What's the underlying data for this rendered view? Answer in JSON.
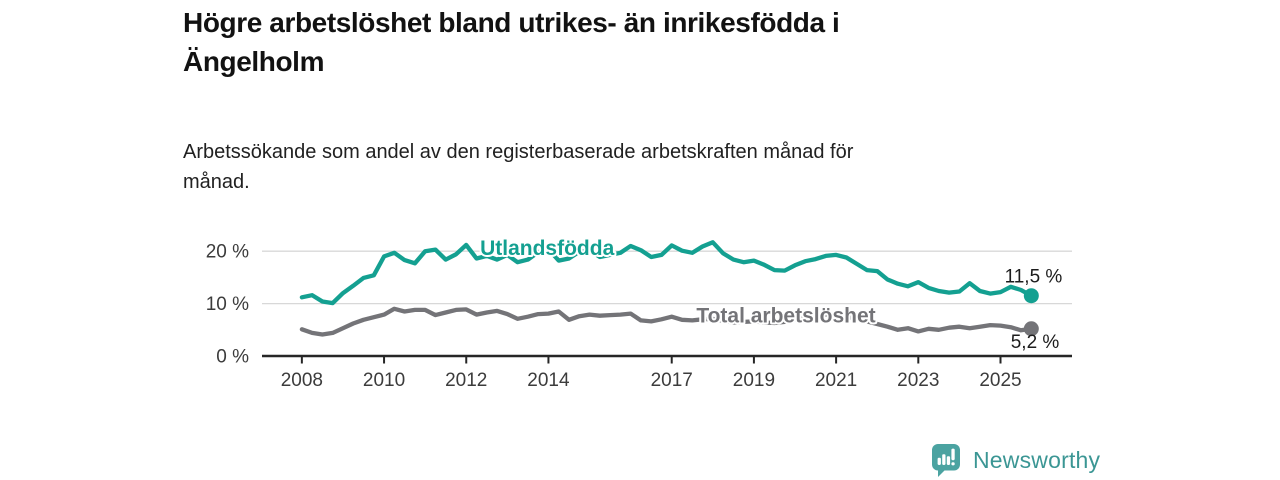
{
  "header": {
    "title_lines": [
      "Högre arbetslöshet bland utrikes- än inrikesfödda i",
      "Ängelholm"
    ],
    "subtitle_lines": [
      "Arbetssökande som andel av den registerbaserade arbetskraften månad för",
      "månad."
    ]
  },
  "chart_data": {
    "type": "line",
    "title": "Högre arbetslöshet bland utrikes- än inrikesfödda i Ängelholm",
    "subtitle": "Arbetssökande som andel av den registerbaserade arbetskraften månad för månad.",
    "y_unit": "%",
    "grid": "horizontal",
    "legend_position": "inline-labels",
    "x_domain": [
      2007.03,
      2026.74
    ],
    "y_domain": [
      0,
      25
    ],
    "y_ticks": [
      {
        "value": 0,
        "label": "0 %"
      },
      {
        "value": 10,
        "label": "10 %"
      },
      {
        "value": 20,
        "label": "20 %"
      }
    ],
    "x_ticks": [
      {
        "value": 2008,
        "label": "2008"
      },
      {
        "value": 2010,
        "label": "2010"
      },
      {
        "value": 2012,
        "label": "2012"
      },
      {
        "value": 2014,
        "label": "2014"
      },
      {
        "value": 2017,
        "label": "2017"
      },
      {
        "value": 2019,
        "label": "2019"
      },
      {
        "value": 2021,
        "label": "2021"
      },
      {
        "value": 2023,
        "label": "2023"
      },
      {
        "value": 2025,
        "label": "2025"
      }
    ],
    "series": [
      {
        "name": "Total arbetslöshet",
        "color": "#747478",
        "x_start": 2008.0,
        "x_step": 0.25,
        "values": [
          5.1,
          4.4,
          4.1,
          4.4,
          5.3,
          6.2,
          6.9,
          7.4,
          7.9,
          9.0,
          8.5,
          8.8,
          8.8,
          7.8,
          8.3,
          8.8,
          8.9,
          7.9,
          8.3,
          8.6,
          8.0,
          7.1,
          7.5,
          8.0,
          8.1,
          8.5,
          6.9,
          7.6,
          7.9,
          7.7,
          7.8,
          7.9,
          8.1,
          6.8,
          6.6,
          7.0,
          7.5,
          6.9,
          6.8,
          7.0,
          7.1,
          6.7,
          6.4,
          6.5,
          6.6,
          6.4,
          6.3,
          6.5,
          6.9,
          7.8,
          8.0,
          7.9,
          7.8,
          7.5,
          7.1,
          6.6,
          6.1,
          5.6,
          5.0,
          5.3,
          4.7,
          5.2,
          5.0,
          5.4,
          5.6,
          5.3,
          5.6,
          5.9,
          5.8,
          5.5,
          4.9,
          5.2
        ],
        "end_value": 5.2,
        "end_label": "5,2 %",
        "inline_label": {
          "text": "Total arbetslöshet",
          "x": 2019.78,
          "y": 6.4
        }
      },
      {
        "name": "Utlandsfödda",
        "color": "#14a091",
        "x_start": 2008.0,
        "x_step": 0.25,
        "values": [
          11.2,
          11.6,
          10.4,
          10.1,
          12.0,
          13.4,
          14.9,
          15.4,
          19.0,
          19.7,
          18.3,
          17.7,
          20.0,
          20.3,
          18.4,
          19.4,
          21.2,
          18.6,
          19.1,
          18.4,
          19.3,
          17.9,
          18.4,
          19.8,
          20.4,
          18.2,
          18.6,
          19.9,
          20.2,
          18.9,
          19.3,
          19.7,
          21.0,
          20.2,
          18.9,
          19.3,
          21.1,
          20.1,
          19.7,
          20.9,
          21.7,
          19.6,
          18.4,
          17.9,
          18.2,
          17.4,
          16.4,
          16.3,
          17.3,
          18.1,
          18.5,
          19.1,
          19.3,
          18.8,
          17.6,
          16.4,
          16.2,
          14.6,
          13.8,
          13.3,
          14.1,
          13.0,
          12.4,
          12.1,
          12.3,
          13.9,
          12.4,
          11.9,
          12.2,
          13.2,
          12.6,
          11.5
        ],
        "end_value": 11.5,
        "end_label": "11,5 %",
        "inline_label": {
          "text": "Utlandsfödda",
          "x": 2013.97,
          "y": 19.3
        }
      }
    ],
    "style": {
      "grid_color": "#d8d8d8",
      "axis_color": "#262626",
      "tick_text_color": "#3c3c3c",
      "value_label_color": "#1c1c1c"
    }
  },
  "footer": {
    "brand": "Newsworthy",
    "logo_color": "#4ba3a1",
    "wordmark_color": "#3b9694"
  }
}
